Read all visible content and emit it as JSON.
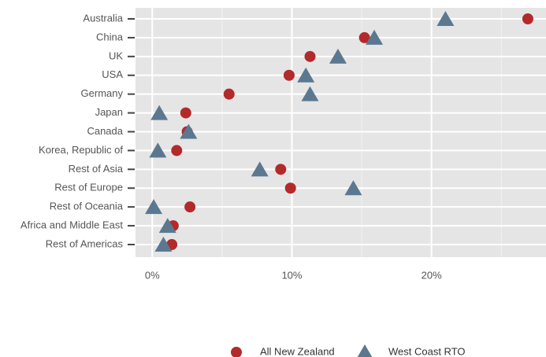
{
  "chart_data": {
    "type": "dot",
    "categories": [
      "Australia",
      "China",
      "UK",
      "USA",
      "Germany",
      "Japan",
      "Canada",
      "Korea, Republic of",
      "Rest of Asia",
      "Rest of Europe",
      "Rest of Oceania",
      "Africa and Middle East",
      "Rest of Americas"
    ],
    "series": [
      {
        "name": "All New Zealand",
        "color": "#b22a2a",
        "marker": "circle",
        "values": [
          26.9,
          15.2,
          11.3,
          9.8,
          5.5,
          2.4,
          2.5,
          1.75,
          9.2,
          9.9,
          2.7,
          1.5,
          1.4
        ]
      },
      {
        "name": "West Coast RTO",
        "color": "#5b7890",
        "marker": "triangle",
        "values": [
          21.0,
          15.9,
          13.3,
          11.0,
          11.3,
          0.5,
          2.6,
          0.4,
          7.7,
          14.4,
          0.1,
          1.1,
          0.8
        ]
      }
    ],
    "xlim": [
      -1.2,
      28.2
    ],
    "xticks": [
      {
        "value": 0,
        "label": "0%"
      },
      {
        "value": 10,
        "label": "10%"
      },
      {
        "value": 20,
        "label": "20%"
      }
    ],
    "xminor": [
      5,
      15,
      25
    ],
    "grid": true,
    "legend": "bottom"
  }
}
